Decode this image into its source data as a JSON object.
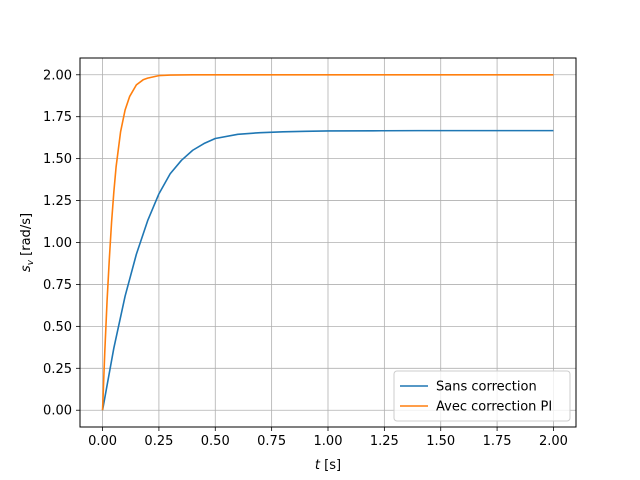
{
  "chart_data": {
    "type": "line",
    "title": "",
    "xlabel_var": "t",
    "xlabel_unit": " [s]",
    "ylabel_var": "s",
    "ylabel_sub": "v",
    "ylabel_unit": " [rad/s]",
    "xlim": [
      -0.1,
      2.1
    ],
    "ylim": [
      -0.1,
      2.1
    ],
    "grid": true,
    "legend_position": "lower-right",
    "x_ticks": [
      0.0,
      0.25,
      0.5,
      0.75,
      1.0,
      1.25,
      1.5,
      1.75,
      2.0
    ],
    "x_tick_labels": [
      "0.00",
      "0.25",
      "0.50",
      "0.75",
      "1.00",
      "1.25",
      "1.50",
      "1.75",
      "2.00"
    ],
    "y_ticks": [
      0.0,
      0.25,
      0.5,
      0.75,
      1.0,
      1.25,
      1.5,
      1.75,
      2.0
    ],
    "y_tick_labels": [
      "0.00",
      "0.25",
      "0.50",
      "0.75",
      "1.00",
      "1.25",
      "1.50",
      "1.75",
      "2.00"
    ],
    "series": [
      {
        "name": "Sans correction",
        "color": "#1f77b4",
        "x": [
          0.0,
          0.05,
          0.1,
          0.15,
          0.2,
          0.25,
          0.3,
          0.35,
          0.4,
          0.45,
          0.5,
          0.6,
          0.7,
          0.8,
          0.9,
          1.0,
          1.2,
          1.4,
          1.6,
          1.8,
          2.0
        ],
        "y": [
          0.0,
          0.37,
          0.68,
          0.93,
          1.13,
          1.29,
          1.41,
          1.49,
          1.55,
          1.59,
          1.62,
          1.645,
          1.655,
          1.66,
          1.663,
          1.665,
          1.666,
          1.667,
          1.667,
          1.667,
          1.667
        ]
      },
      {
        "name": "Avec correction PI",
        "color": "#ff7f0e",
        "x": [
          0.0,
          0.01,
          0.02,
          0.03,
          0.04,
          0.05,
          0.06,
          0.08,
          0.1,
          0.12,
          0.15,
          0.18,
          0.2,
          0.25,
          0.3,
          0.35,
          0.4,
          0.5,
          0.75,
          1.0,
          1.5,
          2.0
        ],
        "y": [
          0.0,
          0.35,
          0.65,
          0.9,
          1.12,
          1.3,
          1.45,
          1.66,
          1.79,
          1.87,
          1.94,
          1.97,
          1.98,
          1.995,
          1.998,
          1.999,
          2.0,
          2.0,
          2.0,
          2.0,
          2.0,
          2.0
        ]
      }
    ]
  }
}
